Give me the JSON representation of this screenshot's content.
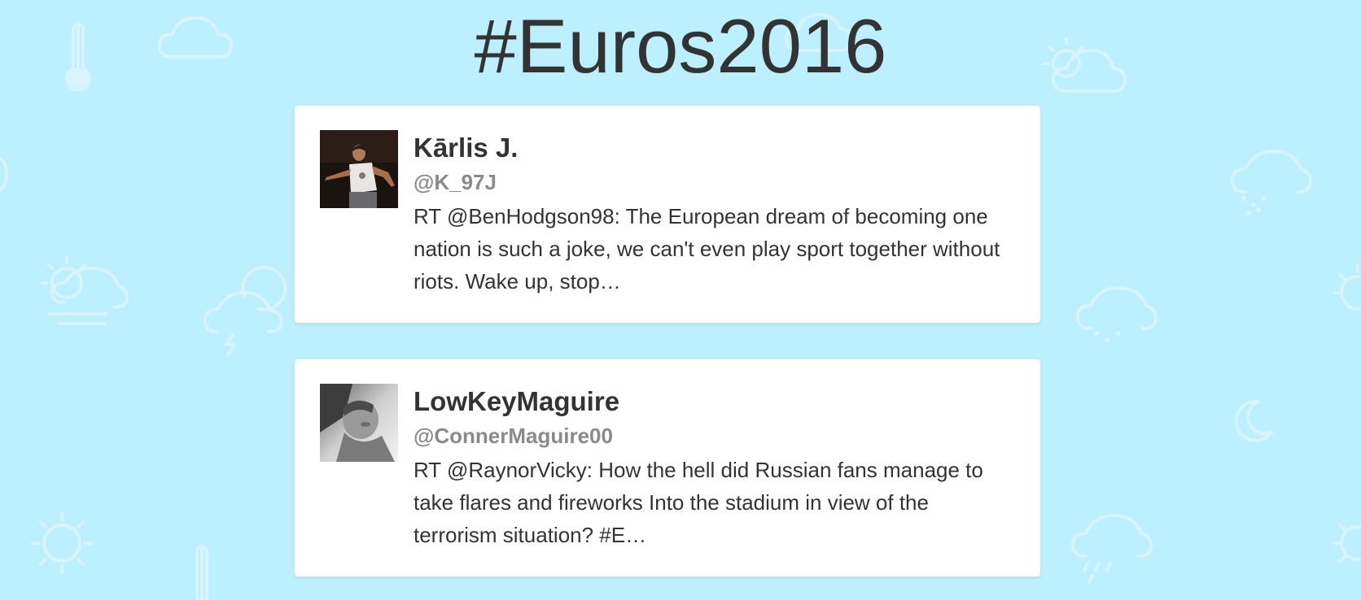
{
  "page": {
    "title": "#Euros2016",
    "background_color": "#bcefff"
  },
  "tweets": [
    {
      "display_name": "Kārlis J.",
      "handle": "@K_97J",
      "text": "RT @BenHodgson98: The European dream of becoming one nation is such a joke, we can't even play sport together without riots. Wake up, stop…",
      "avatar": "profile-photo"
    },
    {
      "display_name": "LowKeyMaguire",
      "handle": "@ConnerMaguire00",
      "text": "RT @RaynorVicky: How the hell did Russian fans manage to take flares and fireworks Into the stadium in view of the terrorism situation? #E…",
      "avatar": "profile-photo"
    }
  ],
  "background_icons": [
    "thermometer-icon",
    "cloud-icon",
    "sun-cloud-icon",
    "snow-cloud-icon",
    "sun-wind-cloud-icon",
    "moon-cloud-icon",
    "rain-cloud-icon",
    "moon-icon",
    "sun-icon"
  ]
}
